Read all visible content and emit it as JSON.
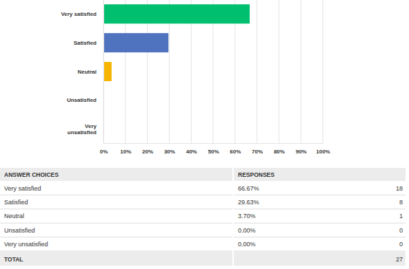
{
  "chart_data": {
    "type": "bar",
    "orientation": "horizontal",
    "categories": [
      "Very satisfied",
      "Satisfied",
      "Neutral",
      "Unsatisfied",
      "Very unsatisfied"
    ],
    "values": [
      66.67,
      29.63,
      3.7,
      0,
      0
    ],
    "colors": [
      "#00bf6f",
      "#4f73be",
      "#f7b500",
      "#6bc8cd",
      "#ff8b4f"
    ],
    "xlim": [
      0,
      100
    ],
    "xticks": [
      {
        "value": 0,
        "label": "0%"
      },
      {
        "value": 10,
        "label": "10%"
      },
      {
        "value": 20,
        "label": "20%"
      },
      {
        "value": 30,
        "label": "30%"
      },
      {
        "value": 40,
        "label": "40%"
      },
      {
        "value": 50,
        "label": "50%"
      },
      {
        "value": 60,
        "label": "60%"
      },
      {
        "value": 70,
        "label": "70%"
      },
      {
        "value": 80,
        "label": "80%"
      },
      {
        "value": 90,
        "label": "90%"
      },
      {
        "value": 100,
        "label": "100%"
      }
    ],
    "grid": true
  },
  "table": {
    "header": [
      "ANSWER CHOICES",
      "RESPONSES"
    ],
    "rows": [
      [
        "Very satisfied",
        "66.67%",
        18
      ],
      [
        "Satisfied",
        "29.63%",
        8
      ],
      [
        "Neutral",
        "3.70%",
        1
      ],
      [
        "Unsatisfied",
        "0.00%",
        0
      ],
      [
        "Very unsatisfied",
        "0.00%",
        0
      ]
    ],
    "total": [
      "TOTAL",
      27
    ]
  }
}
